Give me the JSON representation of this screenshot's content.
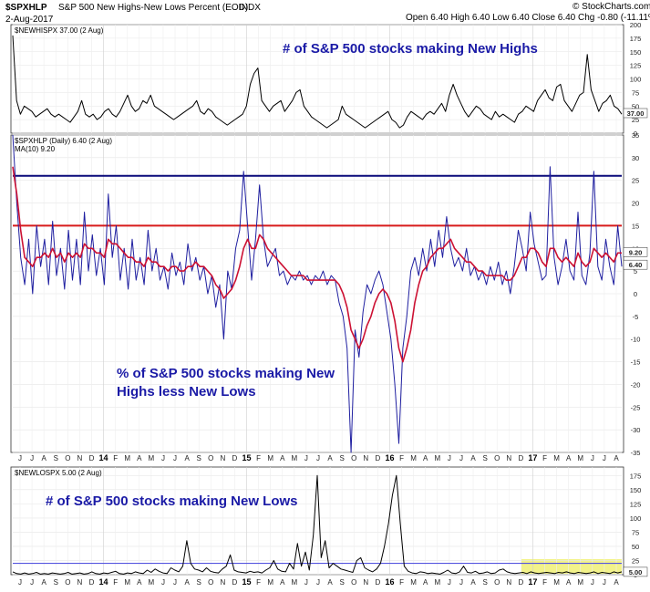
{
  "header": {
    "symbol": "$SPXHLP",
    "title": "S&P 500 New Highs-New Lows Percent (EOD)",
    "exchange": "INDX",
    "date": "2-Aug-2017",
    "ohlc": "Open 6.40  High 6.40  Low 6.40  Close 6.40  Chg -0.80 (-11.11%)",
    "brand": "© StockCharts.com"
  },
  "chart_data": [
    {
      "type": "line",
      "panel": "new-highs",
      "label": "$NEWHISPX 37.00 (2 Aug)",
      "annotation": "# of S&P 500 stocks making New Highs",
      "ylim": [
        0,
        200
      ],
      "yticks": [
        0,
        25,
        50,
        75,
        100,
        125,
        150,
        175,
        200
      ],
      "last_value_tag": "37.00",
      "series": [
        {
          "values": [
            180,
            60,
            35,
            50,
            45,
            40,
            30,
            35,
            40,
            45,
            35,
            30,
            35,
            30,
            25,
            20,
            30,
            40,
            60,
            35,
            30,
            35,
            25,
            30,
            40,
            45,
            35,
            30,
            40,
            55,
            70,
            50,
            40,
            45,
            60,
            55,
            70,
            50,
            45,
            40,
            35,
            30,
            25,
            30,
            35,
            40,
            45,
            50,
            60,
            40,
            35,
            45,
            40,
            30,
            25,
            20,
            15,
            20,
            25,
            30,
            35,
            50,
            90,
            110,
            120,
            60,
            50,
            40,
            50,
            55,
            60,
            40,
            50,
            60,
            75,
            80,
            50,
            40,
            30,
            25,
            20,
            15,
            10,
            15,
            20,
            25,
            50,
            35,
            30,
            25,
            20,
            15,
            10,
            15,
            20,
            25,
            30,
            35,
            40,
            25,
            20,
            10,
            15,
            30,
            40,
            35,
            30,
            25,
            35,
            40,
            35,
            45,
            55,
            40,
            70,
            90,
            70,
            55,
            40,
            30,
            40,
            50,
            45,
            35,
            30,
            25,
            40,
            30,
            35,
            30,
            25,
            20,
            35,
            40,
            50,
            45,
            40,
            60,
            70,
            80,
            65,
            60,
            85,
            90,
            60,
            50,
            40,
            55,
            70,
            75,
            145,
            80,
            60,
            40,
            55,
            60,
            70,
            50,
            45,
            35
          ]
        }
      ]
    },
    {
      "type": "line",
      "panel": "hl-percent",
      "label": "$SPXHLP (Daily) 6.40 (2 Aug)",
      "ma_label": "MA(10) 9.20",
      "annotation": "% of S&P 500 stocks making New Highs less New Lows",
      "ylim": [
        -35,
        35
      ],
      "yticks": [
        -35,
        -30,
        -25,
        -20,
        -15,
        -10,
        -5,
        0,
        5,
        10,
        15,
        20,
        25,
        30,
        35
      ],
      "hlines": [
        26,
        15
      ],
      "last_value_tag": "6.40",
      "ma_value_tag": "9.20",
      "series": [
        {
          "name": "$SPXHLP",
          "values": [
            35,
            20,
            8,
            2,
            12,
            0,
            15,
            6,
            12,
            2,
            16,
            4,
            10,
            1,
            14,
            3,
            12,
            2,
            18,
            5,
            13,
            4,
            10,
            2,
            22,
            8,
            15,
            3,
            10,
            1,
            12,
            3,
            8,
            2,
            14,
            5,
            10,
            3,
            6,
            1,
            9,
            4,
            7,
            2,
            11,
            5,
            8,
            3,
            6,
            0,
            4,
            -3,
            2,
            -10,
            5,
            1,
            10,
            14,
            27,
            15,
            3,
            12,
            24,
            12,
            6,
            8,
            10,
            4,
            5,
            2,
            4,
            3,
            5,
            3,
            4,
            2,
            4,
            3,
            5,
            2,
            4,
            3,
            -2,
            -5,
            -12,
            -35,
            -8,
            -14,
            -4,
            2,
            0,
            3,
            5,
            2,
            -4,
            -10,
            -20,
            -33,
            -12,
            -5,
            5,
            8,
            4,
            10,
            5,
            12,
            6,
            14,
            8,
            17,
            10,
            6,
            8,
            5,
            10,
            4,
            6,
            3,
            5,
            2,
            6,
            3,
            7,
            2,
            5,
            0,
            6,
            14,
            10,
            5,
            18,
            11,
            7,
            3,
            4,
            28,
            8,
            2,
            6,
            12,
            5,
            3,
            18,
            4,
            2,
            9,
            27,
            6,
            3,
            12,
            6,
            2,
            15,
            6
          ]
        },
        {
          "name": "MA(10)",
          "values": [
            28,
            22,
            14,
            8,
            7,
            6,
            8,
            8,
            9,
            8,
            10,
            8,
            9,
            7,
            9,
            8,
            9,
            8,
            11,
            10,
            10,
            9,
            9,
            8,
            12,
            11,
            11,
            10,
            9,
            8,
            8,
            7,
            7,
            6,
            8,
            7,
            7,
            6,
            6,
            5,
            6,
            6,
            5,
            5,
            6,
            6,
            7,
            6,
            6,
            5,
            4,
            2,
            1,
            -1,
            0,
            1,
            3,
            6,
            10,
            12,
            10,
            10,
            13,
            12,
            10,
            9,
            8,
            7,
            6,
            5,
            4,
            4,
            4,
            4,
            3,
            3,
            3,
            3,
            3,
            3,
            3,
            3,
            2,
            0,
            -3,
            -8,
            -10,
            -12,
            -10,
            -7,
            -5,
            -2,
            0,
            1,
            0,
            -2,
            -6,
            -12,
            -15,
            -12,
            -8,
            -2,
            2,
            5,
            6,
            8,
            9,
            10,
            10,
            11,
            12,
            10,
            9,
            8,
            7,
            7,
            6,
            5,
            5,
            4,
            4,
            4,
            4,
            4,
            3,
            3,
            4,
            6,
            8,
            8,
            10,
            10,
            9,
            7,
            6,
            10,
            10,
            8,
            7,
            8,
            7,
            6,
            9,
            7,
            6,
            7,
            10,
            9,
            8,
            9,
            8,
            7,
            9,
            9
          ]
        }
      ]
    },
    {
      "type": "line",
      "panel": "new-lows",
      "label": "$NEWLOSPX 5.00 (2 Aug)",
      "annotation": "# of S&P 500 stocks making New Lows",
      "ylim": [
        0,
        190
      ],
      "yticks": [
        0,
        25,
        50,
        75,
        100,
        125,
        150,
        175
      ],
      "hlines": [
        20
      ],
      "last_value_tag": "5.00",
      "series": [
        {
          "values": [
            5,
            2,
            1,
            3,
            1,
            2,
            4,
            1,
            2,
            1,
            3,
            2,
            1,
            2,
            4,
            1,
            2,
            3,
            1,
            2,
            5,
            2,
            1,
            3,
            2,
            4,
            6,
            2,
            1,
            3,
            2,
            5,
            3,
            2,
            8,
            4,
            10,
            6,
            3,
            2,
            12,
            8,
            5,
            15,
            60,
            20,
            10,
            8,
            5,
            12,
            6,
            4,
            3,
            10,
            15,
            35,
            8,
            5,
            4,
            3,
            6,
            4,
            5,
            3,
            8,
            12,
            25,
            10,
            6,
            5,
            20,
            10,
            55,
            15,
            40,
            8,
            70,
            175,
            30,
            60,
            12,
            20,
            15,
            10,
            8,
            6,
            4,
            25,
            30,
            12,
            8,
            5,
            10,
            20,
            50,
            90,
            140,
            175,
            90,
            15,
            6,
            3,
            2,
            5,
            4,
            2,
            3,
            2,
            1,
            4,
            8,
            3,
            2,
            5,
            15,
            4,
            3,
            6,
            2,
            3,
            5,
            2,
            3,
            8,
            10,
            5,
            3,
            2,
            3,
            4,
            2,
            5,
            3,
            2,
            3,
            4,
            3,
            2,
            4,
            3,
            5,
            3,
            2,
            4,
            3,
            2,
            3,
            5,
            2,
            4,
            3,
            2,
            5,
            3,
            5
          ]
        }
      ]
    }
  ],
  "x_axis": {
    "labels": [
      "J",
      "J",
      "A",
      "S",
      "O",
      "N",
      "D",
      "14",
      "F",
      "M",
      "A",
      "M",
      "J",
      "J",
      "A",
      "S",
      "O",
      "N",
      "D",
      "15",
      "F",
      "M",
      "A",
      "M",
      "J",
      "J",
      "A",
      "S",
      "O",
      "N",
      "D",
      "16",
      "F",
      "M",
      "A",
      "M",
      "J",
      "J",
      "A",
      "S",
      "O",
      "N",
      "D",
      "17",
      "F",
      "M",
      "A",
      "M",
      "J",
      "J",
      "A"
    ],
    "year_labels": [
      "14",
      "15",
      "16",
      "17"
    ]
  },
  "colors": {
    "price_line": "#1f1fa0",
    "ma_line": "#cc1133",
    "upper_band": "#0a0a7a",
    "mid_band": "#d81b1b",
    "lows_band": "#5555e0",
    "highlight": "#f2f28a",
    "annotation": "#1a1aa6"
  }
}
